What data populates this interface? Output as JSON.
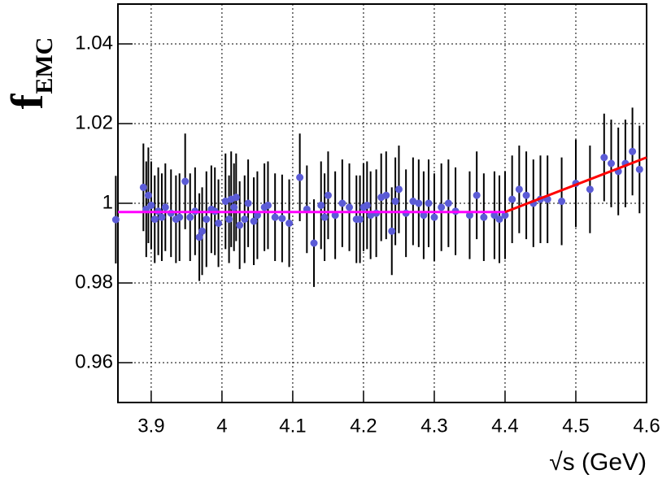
{
  "chart_data": {
    "type": "scatter",
    "ylabel": "f",
    "ylabel_subscript": "EMC",
    "xlabel": "√s (GeV)",
    "xlim": [
      3.853,
      4.6
    ],
    "ylim": [
      0.95,
      1.05
    ],
    "xticks": [
      3.9,
      4,
      4.1,
      4.2,
      4.3,
      4.4,
      4.5,
      4.6
    ],
    "yticks": [
      0.96,
      0.98,
      1,
      1.02,
      1.04
    ],
    "grid": true,
    "series": [
      {
        "color": "#5b5bd6",
        "error_color": "#000000",
        "x": [
          3.85,
          3.889,
          3.893,
          3.896,
          3.9,
          3.905,
          3.91,
          3.915,
          3.92,
          3.928,
          3.935,
          3.94,
          3.948,
          3.955,
          3.962,
          3.968,
          3.972,
          3.978,
          3.985,
          3.99,
          3.995,
          4.005,
          4.01,
          4.013,
          4.017,
          4.02,
          4.025,
          4.032,
          4.037,
          4.045,
          4.05,
          4.06,
          4.065,
          4.075,
          4.085,
          4.095,
          4.11,
          4.12,
          4.13,
          4.14,
          4.145,
          4.15,
          4.16,
          4.17,
          4.18,
          4.19,
          4.195,
          4.2,
          4.205,
          4.21,
          4.218,
          4.225,
          4.232,
          4.24,
          4.245,
          4.25,
          4.26,
          4.27,
          4.278,
          4.285,
          4.292,
          4.3,
          4.31,
          4.32,
          4.33,
          4.35,
          4.36,
          4.37,
          4.385,
          4.392,
          4.4,
          4.41,
          4.42,
          4.43,
          4.44,
          4.45,
          4.46,
          4.48,
          4.5,
          4.52,
          4.54,
          4.55,
          4.56,
          4.57,
          4.58,
          4.59
        ],
        "values": [
          0.9959,
          1.004,
          0.9985,
          1.002,
          0.9995,
          0.996,
          0.998,
          0.9965,
          0.999,
          0.9975,
          0.996,
          0.9965,
          1.0055,
          0.9965,
          0.998,
          0.9915,
          0.993,
          0.996,
          0.9985,
          0.998,
          0.995,
          1.0005,
          0.996,
          1.001,
          0.999,
          1.0015,
          0.9945,
          0.996,
          1.0,
          0.9955,
          0.997,
          0.999,
          0.9995,
          0.9965,
          0.9962,
          0.995,
          1.0065,
          0.9985,
          0.99,
          0.9995,
          0.9965,
          1.002,
          0.997,
          1.0,
          0.999,
          0.996,
          0.996,
          0.999,
          0.9995,
          0.997,
          0.9975,
          1.0015,
          1.002,
          0.993,
          1.0005,
          1.0035,
          0.9975,
          1.0005,
          1.0,
          0.997,
          1.0,
          0.9965,
          0.999,
          1.0,
          0.998,
          0.997,
          1.002,
          0.9965,
          0.997,
          0.996,
          0.997,
          1.001,
          1.0035,
          1.002,
          1.0,
          1.001,
          1.001,
          1.0005,
          1.005,
          1.0035,
          1.0115,
          1.01,
          1.008,
          1.01,
          1.013,
          1.0085
        ],
        "errors": [
          0.011,
          0.011,
          0.012,
          0.012,
          0.011,
          0.011,
          0.011,
          0.011,
          0.011,
          0.011,
          0.011,
          0.011,
          0.012,
          0.011,
          0.011,
          0.011,
          0.011,
          0.012,
          0.011,
          0.011,
          0.011,
          0.012,
          0.011,
          0.012,
          0.011,
          0.011,
          0.011,
          0.011,
          0.011,
          0.011,
          0.011,
          0.011,
          0.011,
          0.011,
          0.011,
          0.011,
          0.011,
          0.011,
          0.011,
          0.011,
          0.011,
          0.011,
          0.011,
          0.011,
          0.011,
          0.011,
          0.011,
          0.011,
          0.011,
          0.011,
          0.011,
          0.011,
          0.011,
          0.011,
          0.011,
          0.011,
          0.011,
          0.011,
          0.011,
          0.011,
          0.011,
          0.011,
          0.011,
          0.011,
          0.011,
          0.011,
          0.011,
          0.011,
          0.011,
          0.011,
          0.011,
          0.011,
          0.011,
          0.011,
          0.011,
          0.011,
          0.011,
          0.011,
          0.011,
          0.011,
          0.011,
          0.011,
          0.011,
          0.011,
          0.011,
          0.011
        ]
      }
    ],
    "lines": [
      {
        "color": "#ff00ff",
        "x": [
          3.853,
          4.4
        ],
        "values": [
          0.9978,
          0.9978
        ]
      },
      {
        "color": "#ff0000",
        "x": [
          4.4,
          4.6
        ],
        "values": [
          0.9978,
          1.0115
        ]
      }
    ]
  }
}
